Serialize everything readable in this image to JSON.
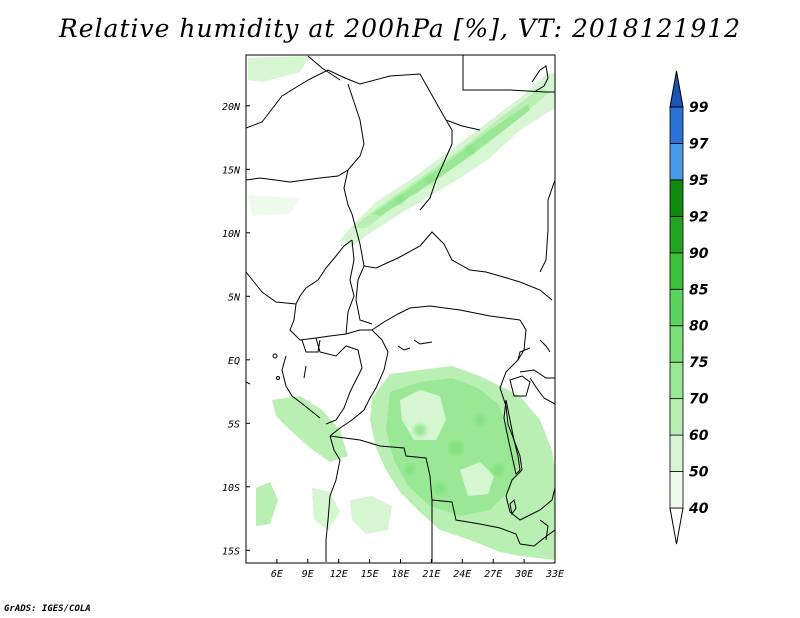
{
  "title": "Relative humidity at 200hPa [%], VT: 2018121912",
  "credit": "GrADS: IGES/COLA",
  "map": {
    "variable": "Relative humidity",
    "level": "200hPa",
    "units": "%",
    "valid_time": "2018121912",
    "lon_range": [
      3,
      33
    ],
    "lat_range": [
      -16,
      24
    ],
    "lon_ticks": [
      "6E",
      "9E",
      "12E",
      "15E",
      "18E",
      "21E",
      "24E",
      "27E",
      "30E",
      "33E"
    ],
    "lon_tick_values": [
      6,
      9,
      12,
      15,
      18,
      21,
      24,
      27,
      30,
      33
    ],
    "lat_ticks": [
      "20N",
      "15N",
      "10N",
      "5N",
      "EQ",
      "5S",
      "10S",
      "15S"
    ],
    "lat_tick_values": [
      20,
      15,
      10,
      5,
      0,
      -5,
      -10,
      -15
    ]
  },
  "colorbar": {
    "levels": [
      "99",
      "97",
      "95",
      "92",
      "90",
      "85",
      "80",
      "75",
      "70",
      "60",
      "50",
      "40"
    ],
    "colors_bottom_to_top": [
      "#ffffff",
      "#eefbec",
      "#d6f6d2",
      "#b9efb3",
      "#9ae895",
      "#7cdf78",
      "#5ad45a",
      "#3cc13c",
      "#22a322",
      "#0f8a0f",
      "#4a9be8",
      "#2b72d6",
      "#1a55b8"
    ]
  }
}
